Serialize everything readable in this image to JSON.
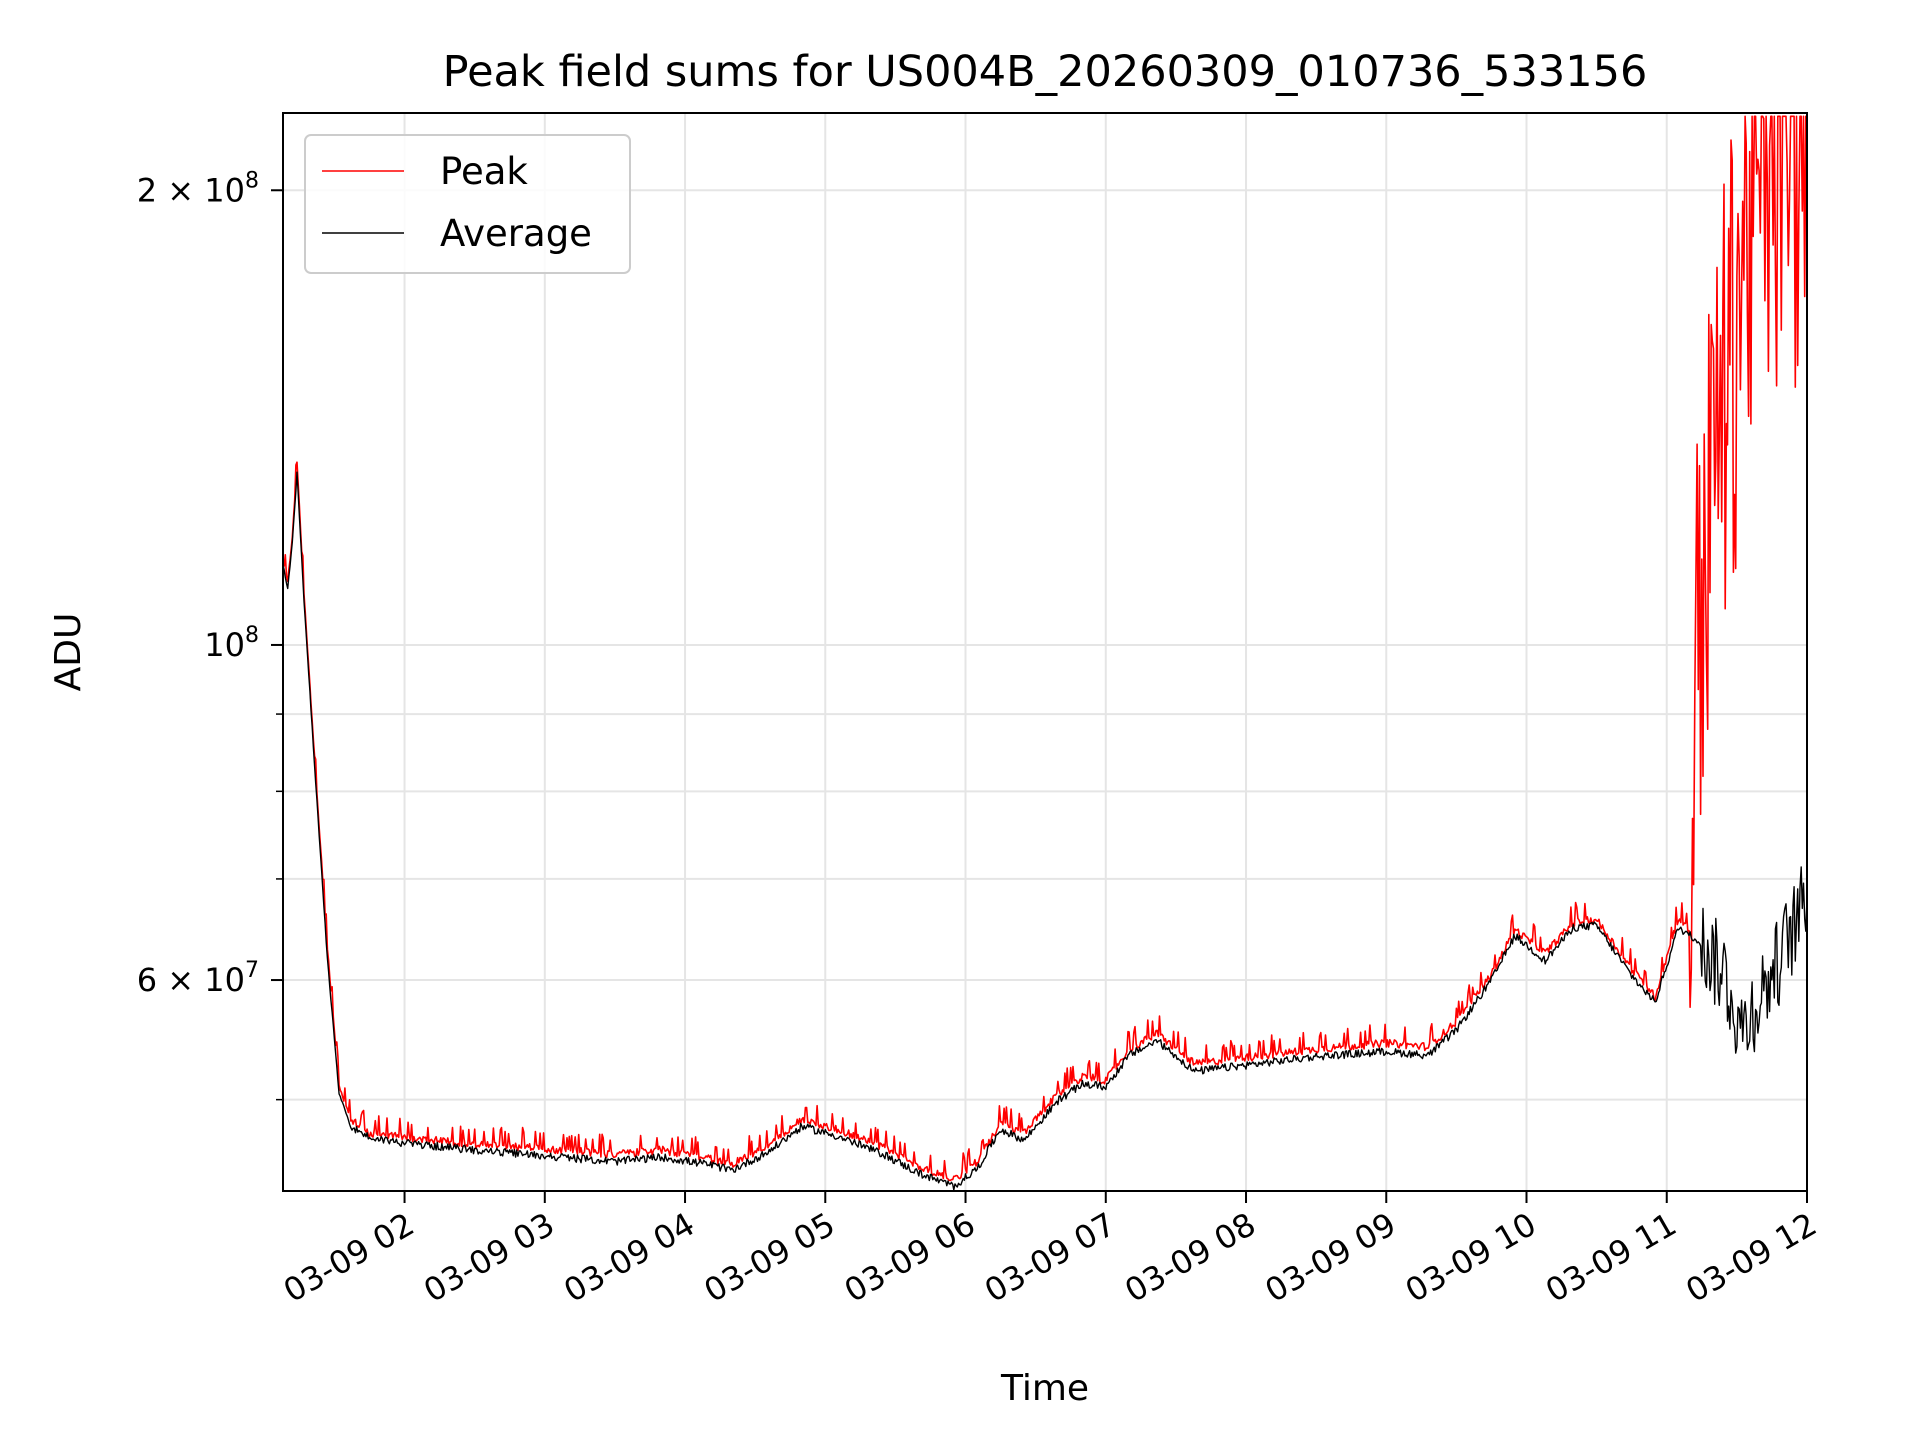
{
  "chart_data": {
    "type": "line",
    "title": "Peak field sums for US004B_20260309_010736_533156",
    "xlabel": "Time",
    "ylabel": "ADU",
    "yscale": "log",
    "ylim": [
      43500000,
      225000000
    ],
    "xlim": [
      "03-09 01:08",
      "03-09 12:00"
    ],
    "grid": true,
    "legend_position": "top-left",
    "x_ticks": [
      "03-09 02",
      "03-09 03",
      "03-09 04",
      "03-09 05",
      "03-09 06",
      "03-09 07",
      "03-09 08",
      "03-09 09",
      "03-09 10",
      "03-09 11",
      "03-09 12"
    ],
    "y_ticks": [
      {
        "value": 200000000,
        "mantissa": "2",
        "exp": "8"
      },
      {
        "value": 100000000,
        "mantissa": "",
        "exp": "8"
      },
      {
        "value": 60000000,
        "mantissa": "6",
        "exp": "7"
      }
    ],
    "series": [
      {
        "name": "Peak",
        "color": "#ff0000",
        "points": [
          [
            "03-09 01:08",
            114000000
          ],
          [
            "03-09 01:10",
            110000000
          ],
          [
            "03-09 01:12",
            118000000
          ],
          [
            "03-09 01:14",
            132000000
          ],
          [
            "03-09 01:17",
            108000000
          ],
          [
            "03-09 01:22",
            82000000
          ],
          [
            "03-09 01:27",
            63000000
          ],
          [
            "03-09 01:32",
            51000000
          ],
          [
            "03-09 01:37",
            48500000
          ],
          [
            "03-09 01:45",
            47500000
          ],
          [
            "03-09 02:00",
            47200000
          ],
          [
            "03-09 02:30",
            46700000
          ],
          [
            "03-09 03:00",
            46400000
          ],
          [
            "03-09 03:30",
            46000000
          ],
          [
            "03-09 03:50",
            46300000
          ],
          [
            "03-09 04:10",
            45700000
          ],
          [
            "03-09 04:20",
            45300000
          ],
          [
            "03-09 04:35",
            46600000
          ],
          [
            "03-09 04:50",
            48500000
          ],
          [
            "03-09 05:05",
            47800000
          ],
          [
            "03-09 05:25",
            46500000
          ],
          [
            "03-09 05:40",
            45100000
          ],
          [
            "03-09 05:55",
            44300000
          ],
          [
            "03-09 06:05",
            45500000
          ],
          [
            "03-09 06:15",
            48200000
          ],
          [
            "03-09 06:25",
            47500000
          ],
          [
            "03-09 06:40",
            50500000
          ],
          [
            "03-09 06:50",
            51800000
          ],
          [
            "03-09 07:00",
            51500000
          ],
          [
            "03-09 07:10",
            54000000
          ],
          [
            "03-09 07:22",
            55300000
          ],
          [
            "03-09 07:38",
            52800000
          ],
          [
            "03-09 08:00",
            53300000
          ],
          [
            "03-09 08:30",
            54000000
          ],
          [
            "03-09 09:00",
            54500000
          ],
          [
            "03-09 09:18",
            54200000
          ],
          [
            "03-09 09:30",
            56300000
          ],
          [
            "03-09 09:45",
            60500000
          ],
          [
            "03-09 09:55",
            64800000
          ],
          [
            "03-09 10:08",
            62500000
          ],
          [
            "03-09 10:20",
            65500000
          ],
          [
            "03-09 10:30",
            65800000
          ],
          [
            "03-09 10:45",
            61000000
          ],
          [
            "03-09 10:55",
            58500000
          ],
          [
            "03-09 11:05",
            66000000
          ],
          [
            "03-09 11:10",
            64500000
          ],
          [
            "03-09 11:12",
            100000000
          ],
          [
            "03-09 11:20",
            135000000
          ],
          [
            "03-09 11:28",
            165000000
          ],
          [
            "03-09 11:35",
            195000000
          ],
          [
            "03-09 11:45",
            216000000
          ],
          [
            "03-09 12:00",
            222000000
          ]
        ]
      },
      {
        "name": "Average",
        "color": "#000000",
        "points": [
          [
            "03-09 01:08",
            113000000
          ],
          [
            "03-09 01:10",
            109000000
          ],
          [
            "03-09 01:12",
            117000000
          ],
          [
            "03-09 01:14",
            130000000
          ],
          [
            "03-09 01:17",
            107000000
          ],
          [
            "03-09 01:22",
            81000000
          ],
          [
            "03-09 01:27",
            62000000
          ],
          [
            "03-09 01:32",
            50500000
          ],
          [
            "03-09 01:37",
            48000000
          ],
          [
            "03-09 01:45",
            47200000
          ],
          [
            "03-09 02:00",
            46800000
          ],
          [
            "03-09 02:30",
            46300000
          ],
          [
            "03-09 03:00",
            45900000
          ],
          [
            "03-09 03:30",
            45500000
          ],
          [
            "03-09 03:50",
            45800000
          ],
          [
            "03-09 04:10",
            45300000
          ],
          [
            "03-09 04:20",
            44900000
          ],
          [
            "03-09 04:35",
            46100000
          ],
          [
            "03-09 04:50",
            48000000
          ],
          [
            "03-09 05:05",
            47300000
          ],
          [
            "03-09 05:25",
            46000000
          ],
          [
            "03-09 05:40",
            44700000
          ],
          [
            "03-09 05:55",
            43800000
          ],
          [
            "03-09 06:05",
            45000000
          ],
          [
            "03-09 06:15",
            47800000
          ],
          [
            "03-09 06:25",
            47000000
          ],
          [
            "03-09 06:40",
            50000000
          ],
          [
            "03-09 06:50",
            51200000
          ],
          [
            "03-09 07:00",
            51000000
          ],
          [
            "03-09 07:10",
            53500000
          ],
          [
            "03-09 07:22",
            54700000
          ],
          [
            "03-09 07:38",
            52200000
          ],
          [
            "03-09 08:00",
            52700000
          ],
          [
            "03-09 08:30",
            53400000
          ],
          [
            "03-09 09:00",
            53800000
          ],
          [
            "03-09 09:18",
            53500000
          ],
          [
            "03-09 09:30",
            55600000
          ],
          [
            "03-09 09:45",
            60000000
          ],
          [
            "03-09 09:55",
            64200000
          ],
          [
            "03-09 10:08",
            61800000
          ],
          [
            "03-09 10:20",
            65000000
          ],
          [
            "03-09 10:30",
            65200000
          ],
          [
            "03-09 10:45",
            60400000
          ],
          [
            "03-09 10:55",
            58000000
          ],
          [
            "03-09 11:05",
            65000000
          ],
          [
            "03-09 11:15",
            63500000
          ],
          [
            "03-09 11:25",
            60500000
          ],
          [
            "03-09 11:32",
            55500000
          ],
          [
            "03-09 11:38",
            58000000
          ],
          [
            "03-09 11:45",
            60500000
          ],
          [
            "03-09 11:52",
            64000000
          ],
          [
            "03-09 12:00",
            68000000
          ]
        ]
      }
    ]
  }
}
